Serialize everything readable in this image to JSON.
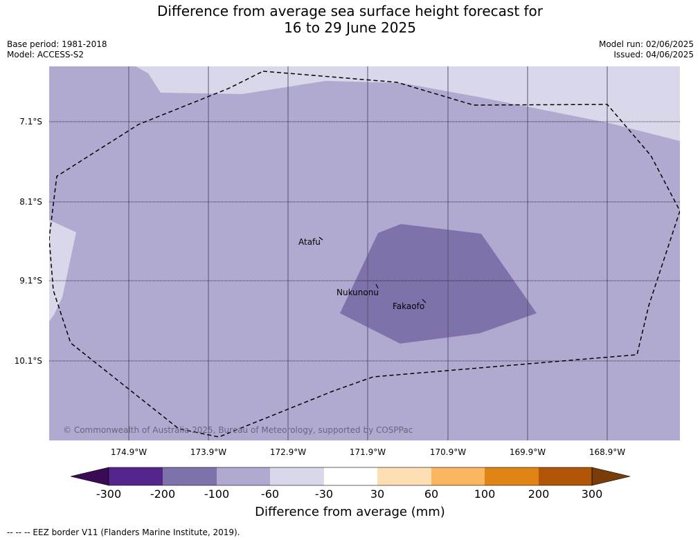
{
  "title_line1": "Difference from average sea surface height forecast for",
  "title_line2": "16 to 29 June 2025",
  "meta": {
    "base_period": "Base period: 1981-2018",
    "model": "Model: ACCESS-S2",
    "model_run": "Model run: 02/06/2025",
    "issued": "Issued: 04/06/2025"
  },
  "map": {
    "latitudes": [
      "7.1°S",
      "8.1°S",
      "9.1°S",
      "10.1°S"
    ],
    "longitudes": [
      "174.9°W",
      "173.9°W",
      "172.9°W",
      "171.9°W",
      "170.9°W",
      "169.9°W",
      "168.9°W"
    ],
    "places": [
      "Atafu",
      "Nukunonu",
      "Fakaofo"
    ],
    "copyright": "© Commonwealth of Australia 2025, Bureau of Meteorology, supported by COSPPac",
    "colors": {
      "background_class": "#b0aad0",
      "light_class": "#d8d8ea",
      "dark_class": "#7f72ab"
    }
  },
  "colorbar": {
    "ticks": [
      "-300",
      "-200",
      "-100",
      "-60",
      "-30",
      "30",
      "60",
      "100",
      "200",
      "300"
    ],
    "colors": [
      "#3a0a55",
      "#54258a",
      "#7f72ab",
      "#b0aad0",
      "#d8d8ea",
      "#ffffff",
      "#fedfb4",
      "#fbb660",
      "#e08416",
      "#b05606",
      "#7a3c08"
    ],
    "title": "Difference from average (mm)"
  },
  "footer": "--  --  -- EEZ border V11 (Flanders Marine Institute, 2019)."
}
